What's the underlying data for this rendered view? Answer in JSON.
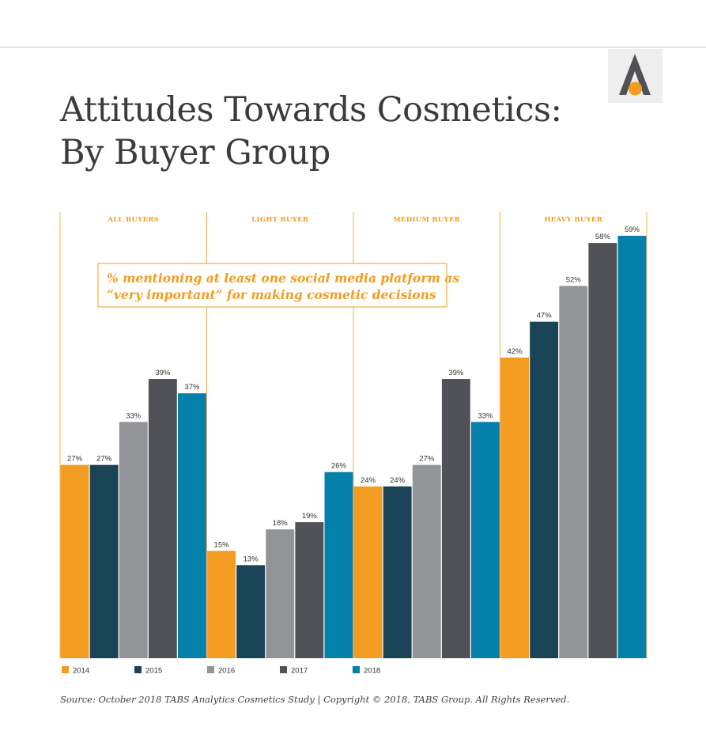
{
  "title_lines": [
    "Attitudes Towards Cosmetics:",
    "By Buyer Group"
  ],
  "source": "Source: October 2018 TABS Analytics Cosmetics Study | Copyright © 2018, TABS Group. All Rights Reserved.",
  "logo": {
    "icon": "tabs-a-logo-icon",
    "color": "#515258",
    "dot_color": "#f29d22"
  },
  "chart_data": {
    "type": "bar",
    "annotation": [
      "% mentioning at least one social media platform as",
      "“very important” for making cosmetic decisions"
    ],
    "categories": [
      "ALL BUYERS",
      "LIGHT BUYER",
      "MEDIUM BUYER",
      "HEAVY BUYER"
    ],
    "series": [
      {
        "name": "2014",
        "color": "#f29d22",
        "values": [
          27,
          15,
          24,
          42
        ]
      },
      {
        "name": "2015",
        "color": "#1b4357",
        "values": [
          27,
          13,
          24,
          47
        ]
      },
      {
        "name": "2016",
        "color": "#939497",
        "values": [
          33,
          18,
          27,
          52
        ]
      },
      {
        "name": "2017",
        "color": "#515258",
        "values": [
          39,
          19,
          39,
          58
        ]
      },
      {
        "name": "2018",
        "color": "#0580ab",
        "values": [
          37,
          26,
          33,
          59
        ]
      }
    ],
    "value_suffix": "%",
    "ylim": [
      0,
      65
    ],
    "grid": false,
    "legend": "bottom-left",
    "accent_color": "#f29d22"
  }
}
